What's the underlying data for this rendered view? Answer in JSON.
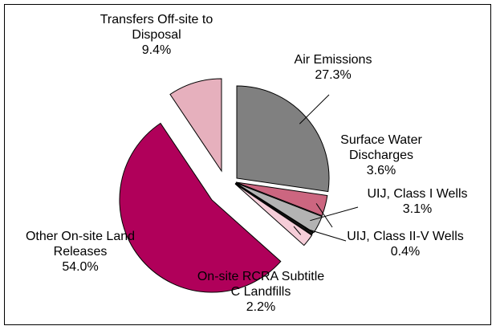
{
  "chart_data": {
    "type": "pie",
    "categories": [
      "Air Emissions",
      "Surface Water Discharges",
      "UIJ, Class I Wells",
      "UIJ, Class II-V Wells",
      "On-site RCRA Subtitle C Landfills",
      "Other On-site Land Releases",
      "Transfers Off-site to Disposal"
    ],
    "values": [
      27.3,
      3.6,
      3.1,
      0.4,
      2.2,
      54.0,
      9.4
    ],
    "value_labels": [
      "27.3%",
      "3.6%",
      "3.1%",
      "0.4%",
      "2.2%",
      "54.0%",
      "9.4%"
    ],
    "colors": [
      "#808080",
      "#cc6680",
      "#b3b3b3",
      "#1a1a1a",
      "#f5cdd8",
      "#b0005a",
      "#e6b0bd"
    ]
  }
}
